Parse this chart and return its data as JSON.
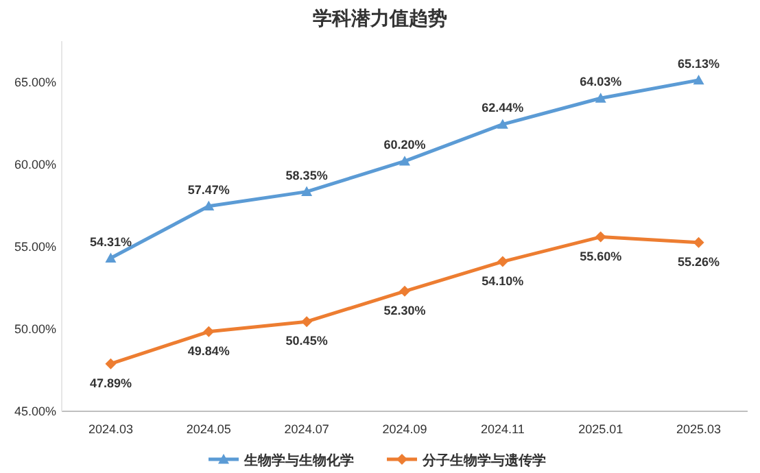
{
  "chart_data": {
    "type": "line",
    "title": "学科潜力值趋势",
    "categories": [
      "2024.03",
      "2024.05",
      "2024.07",
      "2024.09",
      "2024.11",
      "2025.01",
      "2025.03"
    ],
    "series": [
      {
        "name": "生物学与生物化学",
        "color": "#5b9bd5",
        "marker": "triangle",
        "values": [
          54.31,
          57.47,
          58.35,
          60.2,
          62.44,
          64.03,
          65.13
        ],
        "value_labels": [
          "54.31%",
          "57.47%",
          "58.35%",
          "60.20%",
          "62.44%",
          "64.03%",
          "65.13%"
        ]
      },
      {
        "name": "分子生物学与遗传学",
        "color": "#ed7d31",
        "marker": "diamond",
        "values": [
          47.89,
          49.84,
          50.45,
          52.3,
          54.1,
          55.6,
          55.26
        ],
        "value_labels": [
          "47.89%",
          "49.84%",
          "50.45%",
          "52.30%",
          "54.10%",
          "55.60%",
          "55.26%"
        ]
      }
    ],
    "ylim": [
      45,
      67.5
    ],
    "yticks": [
      {
        "value": 45,
        "label": "45.00%"
      },
      {
        "value": 50,
        "label": "50.00%"
      },
      {
        "value": 55,
        "label": "55.00%"
      },
      {
        "value": 60,
        "label": "60.00%"
      },
      {
        "value": 65,
        "label": "65.00%"
      }
    ],
    "grid": false,
    "legend": "bottom",
    "line_style": "solid"
  }
}
